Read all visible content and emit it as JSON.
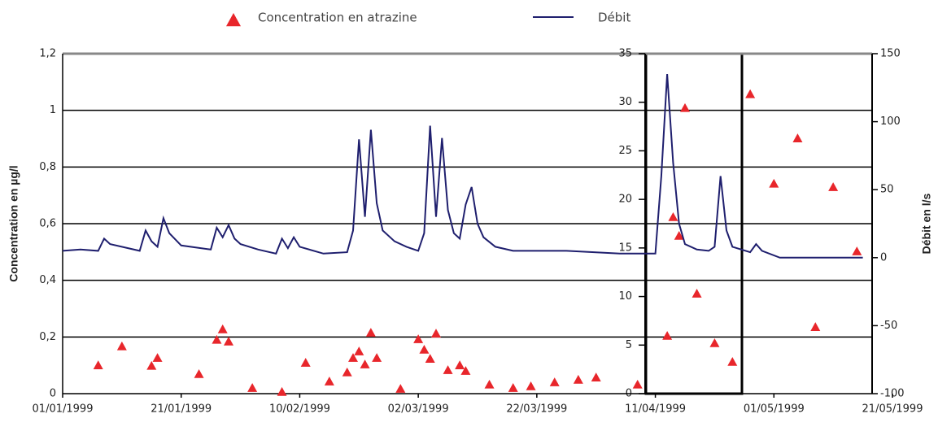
{
  "chart_data": {
    "type": "scatter-line",
    "series": [
      {
        "name": "Concentration en atrazine",
        "color": "#e8262b",
        "marker": "triangle",
        "x": [
          "1999-01-07",
          "1999-01-11",
          "1999-01-16",
          "1999-01-17",
          "1999-01-24",
          "1999-01-27",
          "1999-01-28",
          "1999-01-29",
          "1999-02-02",
          "1999-02-07",
          "1999-02-11",
          "1999-02-15",
          "1999-02-18",
          "1999-02-19",
          "1999-02-20",
          "1999-02-21",
          "1999-02-22",
          "1999-02-23",
          "1999-02-27",
          "1999-03-02",
          "1999-03-03",
          "1999-03-04",
          "1999-03-05",
          "1999-03-07",
          "1999-03-09",
          "1999-03-10",
          "1999-03-14",
          "1999-03-18",
          "1999-03-21",
          "1999-03-25",
          "1999-03-29",
          "1999-04-01",
          "1999-04-08",
          "1999-04-13",
          "1999-04-14",
          "1999-04-15",
          "1999-04-16",
          "1999-04-18",
          "1999-04-21",
          "1999-04-24",
          "1999-04-27",
          "1999-05-01",
          "1999-05-05",
          "1999-05-08",
          "1999-05-11",
          "1999-05-15"
        ],
        "values": [
          0.1,
          0.167,
          0.098,
          0.126,
          0.069,
          0.19,
          0.227,
          0.184,
          0.02,
          0.006,
          0.109,
          0.043,
          0.075,
          0.126,
          0.149,
          0.103,
          0.215,
          0.126,
          0.017,
          0.192,
          0.155,
          0.123,
          0.212,
          0.083,
          0.1,
          0.08,
          0.032,
          0.02,
          0.026,
          0.04,
          0.049,
          0.057,
          0.032,
          0.204,
          0.623,
          0.557,
          1.008,
          0.353,
          0.178,
          0.112,
          1.057,
          0.741,
          0.901,
          0.235,
          0.729,
          0.502
        ]
      },
      {
        "name": "Débit",
        "color": "#1f1f6e",
        "marker": "line",
        "axis": "y2",
        "x": [
          "1999-01-01",
          "1999-01-04",
          "1999-01-07",
          "1999-01-08",
          "1999-01-09",
          "1999-01-14",
          "1999-01-15",
          "1999-01-16",
          "1999-01-17",
          "1999-01-18",
          "1999-01-19",
          "1999-01-21",
          "1999-01-26",
          "1999-01-27",
          "1999-01-28",
          "1999-01-29",
          "1999-01-30",
          "1999-01-31",
          "1999-02-03",
          "1999-02-06",
          "1999-02-07",
          "1999-02-08",
          "1999-02-09",
          "1999-02-10",
          "1999-02-14",
          "1999-02-18",
          "1999-02-19",
          "1999-02-20",
          "1999-02-21",
          "1999-02-22",
          "1999-02-23",
          "1999-02-24",
          "1999-02-26",
          "1999-02-28",
          "1999-03-02",
          "1999-03-03",
          "1999-03-04",
          "1999-03-05",
          "1999-03-06",
          "1999-03-07",
          "1999-03-08",
          "1999-03-09",
          "1999-03-10",
          "1999-03-11",
          "1999-03-12",
          "1999-03-13",
          "1999-03-15",
          "1999-03-18",
          "1999-03-27",
          "1999-04-05",
          "1999-04-11",
          "1999-04-12",
          "1999-04-13",
          "1999-04-14",
          "1999-04-15",
          "1999-04-16",
          "1999-04-18",
          "1999-04-20",
          "1999-04-21",
          "1999-04-22",
          "1999-04-23",
          "1999-04-24",
          "1999-04-27",
          "1999-04-28",
          "1999-04-29",
          "1999-05-02",
          "1999-05-16"
        ],
        "values": [
          5,
          6,
          5,
          14,
          10,
          5,
          20,
          12,
          8,
          29,
          18,
          9,
          6,
          22,
          15,
          24,
          14,
          10,
          6,
          3,
          14,
          7,
          15,
          8,
          3,
          4,
          20,
          87,
          30,
          94,
          40,
          20,
          12,
          8,
          5,
          18,
          97,
          30,
          88,
          35,
          18,
          14,
          39,
          52,
          25,
          15,
          8,
          5,
          5,
          3,
          3,
          60,
          135,
          70,
          25,
          10,
          6,
          5,
          8,
          60,
          20,
          8,
          4,
          10,
          5,
          0,
          0
        ]
      }
    ],
    "xlim": [
      "1999-01-01",
      "1999-05-21"
    ],
    "xticks": [
      {
        "value": "1999-01-01",
        "label": "01/01/1999"
      },
      {
        "value": "1999-01-21",
        "label": "21/01/1999"
      },
      {
        "value": "1999-02-10",
        "label": "10/02/1999"
      },
      {
        "value": "1999-03-02",
        "label": "02/03/1999"
      },
      {
        "value": "1999-03-22",
        "label": "22/03/1999"
      },
      {
        "value": "1999-04-11",
        "label": "11/04/1999"
      },
      {
        "value": "1999-05-01",
        "label": "01/05/1999"
      },
      {
        "value": "1999-05-21",
        "label": "21/05/1999"
      }
    ],
    "ylabel": "Concentration  en µg/l",
    "ylim": [
      0,
      1.2
    ],
    "yticks": [
      0,
      {
        "value": 0.2,
        "label": "0,2"
      },
      {
        "value": 0.4,
        "label": "0,4"
      },
      {
        "value": 0.6,
        "label": "0,6"
      },
      {
        "value": 0.8,
        "label": "0,8"
      },
      1,
      {
        "value": 1.2,
        "label": "1,2"
      }
    ],
    "y2label": "Débit en l/s",
    "y2lim": [
      -100,
      150
    ],
    "y2ticks": [
      -100,
      -50,
      0,
      50,
      100,
      150
    ],
    "y3lim": [
      0,
      35
    ],
    "y3ticks": [
      0,
      5,
      10,
      15,
      20,
      25,
      30,
      35
    ],
    "grid": true,
    "legend": "top"
  }
}
